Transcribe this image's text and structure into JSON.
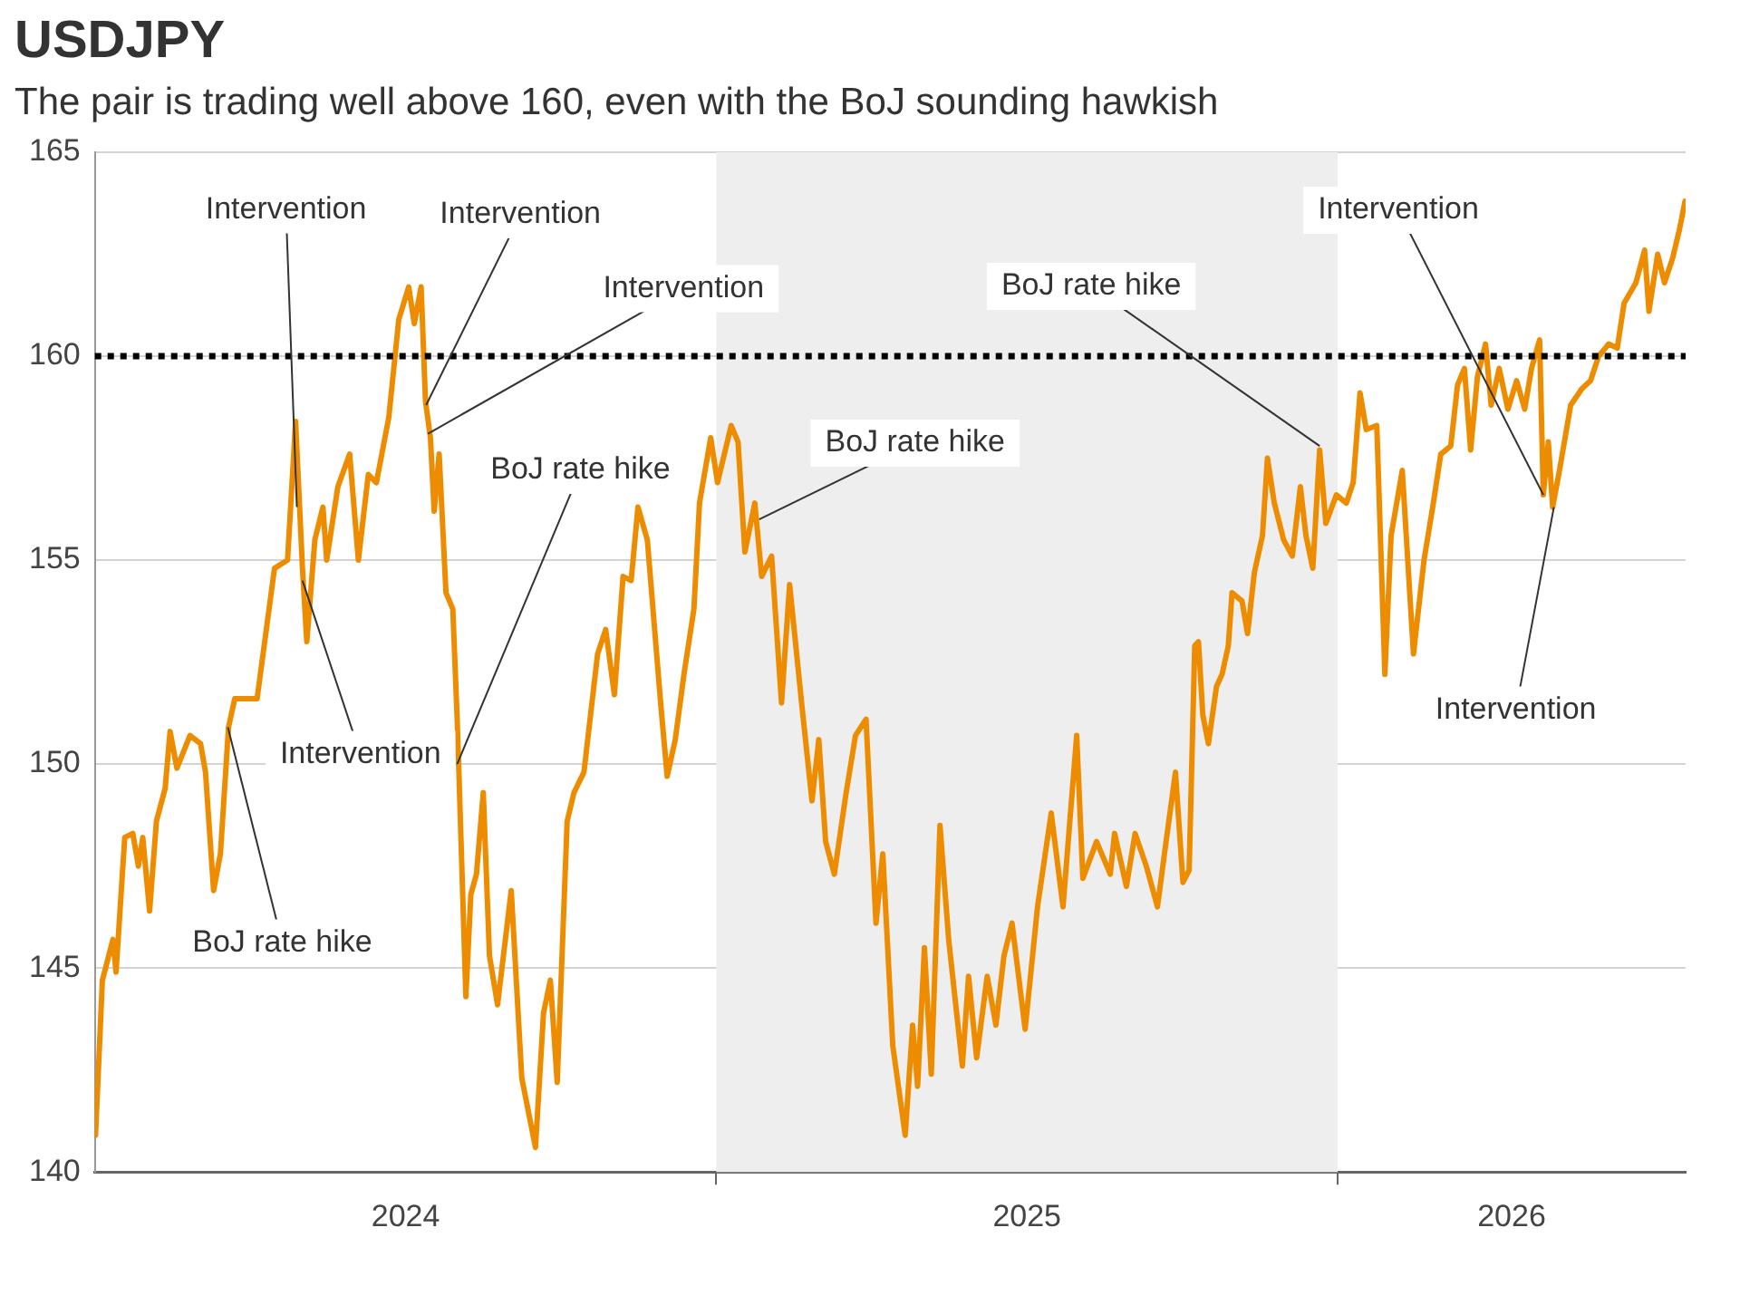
{
  "chart_data": {
    "type": "line",
    "title": "USDJPY",
    "subtitle": "The pair is trading well above 160, even with the BoJ sounding hawkish",
    "series": [
      {
        "color": "#ee8c00",
        "x": [
          2024.001,
          2024.012,
          2024.029,
          2024.034,
          2024.048,
          2024.061,
          2024.07,
          2024.077,
          2024.088,
          2024.099,
          2024.113,
          2024.121,
          2024.132,
          2024.153,
          2024.17,
          2024.178,
          2024.191,
          2024.202,
          2024.215,
          2024.225,
          2024.261,
          2024.275,
          2024.289,
          2024.31,
          2024.323,
          2024.334,
          2024.341,
          2024.354,
          2024.367,
          2024.373,
          2024.391,
          2024.41,
          2024.424,
          2024.44,
          2024.453,
          2024.473,
          2024.489,
          2024.505,
          2024.514,
          2024.525,
          2024.532,
          2024.54,
          2024.546,
          2024.554,
          2024.565,
          2024.576,
          2024.583,
          2024.586,
          2024.597,
          2024.605,
          2024.614,
          2024.625,
          2024.635,
          2024.648,
          2024.67,
          2024.687,
          2024.709,
          2024.722,
          2024.733,
          2024.744,
          2024.76,
          2024.771,
          2024.787,
          2024.809,
          2024.822,
          2024.836,
          2024.85,
          2024.863,
          2024.874,
          2024.889,
          2024.911,
          2024.921,
          2024.934,
          2024.948,
          2024.964,
          2024.973,
          2024.991,
          2025.002,
          2025.024,
          2025.035,
          2025.046,
          2025.062,
          2025.073,
          2025.089,
          2025.105,
          2025.118,
          2025.138,
          2025.154,
          2025.165,
          2025.176,
          2025.19,
          2025.208,
          2025.224,
          2025.241,
          2025.257,
          2025.268,
          2025.284,
          2025.304,
          2025.316,
          2025.324,
          2025.335,
          2025.346,
          2025.36,
          2025.374,
          2025.396,
          2025.406,
          2025.419,
          2025.436,
          2025.45,
          2025.463,
          2025.476,
          2025.497,
          2025.517,
          2025.539,
          2025.558,
          2025.58,
          2025.59,
          2025.612,
          2025.634,
          2025.641,
          2025.66,
          2025.674,
          2025.692,
          2025.71,
          2025.723,
          2025.739,
          2025.751,
          2025.761,
          2025.77,
          2025.776,
          2025.783,
          2025.792,
          2025.805,
          2025.814,
          2025.824,
          2025.83,
          2025.846,
          2025.855,
          2025.866,
          2025.879,
          2025.887,
          2025.898,
          2025.913,
          2025.927,
          2025.94,
          2025.949,
          2025.96,
          2025.971,
          2025.981,
          2025.998,
          2026.014,
          2026.025,
          2026.036,
          2026.046,
          2026.063,
          2026.076,
          2026.086,
          2026.104,
          2026.122,
          2026.139,
          2026.153,
          2026.166,
          2026.182,
          2026.193,
          2026.204,
          2026.214,
          2026.225,
          2026.238,
          2026.247,
          2026.26,
          2026.274,
          2026.288,
          2026.301,
          2026.312,
          2026.325,
          2026.331,
          2026.339,
          2026.346,
          2026.357,
          2026.375,
          2026.393,
          2026.407,
          2026.42,
          2026.436,
          2026.45,
          2026.461,
          2026.48,
          2026.494,
          2026.501,
          2026.515,
          2026.526,
          2026.539,
          2026.55,
          2026.559
        ],
        "values": [
          140.9,
          144.7,
          145.7,
          144.9,
          148.2,
          148.3,
          147.5,
          148.2,
          146.4,
          148.6,
          149.4,
          150.8,
          149.9,
          150.7,
          150.5,
          149.8,
          146.9,
          147.8,
          150.9,
          151.6,
          151.6,
          153.2,
          154.8,
          155.0,
          158.4,
          154.8,
          153.0,
          155.5,
          156.3,
          155.0,
          156.8,
          157.6,
          155.0,
          157.1,
          156.9,
          158.5,
          160.9,
          161.7,
          160.8,
          161.7,
          158.9,
          158.0,
          156.2,
          157.6,
          154.2,
          153.8,
          151.1,
          149.7,
          144.3,
          146.8,
          147.3,
          149.3,
          145.3,
          144.1,
          146.9,
          142.3,
          140.6,
          143.9,
          144.7,
          142.2,
          148.6,
          149.3,
          149.8,
          152.7,
          153.3,
          151.7,
          154.6,
          154.5,
          156.3,
          155.5,
          151.4,
          149.7,
          150.6,
          152.2,
          153.8,
          156.4,
          158.0,
          156.9,
          158.3,
          157.9,
          155.2,
          156.4,
          154.6,
          155.1,
          151.5,
          154.4,
          151.4,
          149.1,
          150.6,
          148.1,
          147.3,
          149.2,
          150.7,
          151.1,
          146.1,
          147.8,
          143.1,
          140.9,
          143.6,
          142.1,
          145.5,
          142.4,
          148.5,
          145.7,
          142.6,
          144.8,
          142.8,
          144.8,
          143.6,
          145.3,
          146.1,
          143.5,
          146.5,
          148.8,
          146.5,
          150.7,
          147.2,
          148.1,
          147.3,
          148.3,
          147.0,
          148.3,
          147.5,
          146.5,
          148.0,
          149.8,
          147.1,
          147.4,
          152.9,
          153.0,
          151.2,
          150.5,
          151.9,
          152.2,
          152.9,
          154.2,
          154.0,
          153.2,
          154.7,
          155.6,
          157.5,
          156.4,
          155.5,
          155.1,
          156.8,
          155.6,
          154.8,
          157.7,
          155.9,
          156.6,
          156.4,
          156.9,
          159.1,
          158.2,
          158.3,
          152.2,
          155.6,
          157.2,
          152.7,
          155.0,
          156.3,
          157.6,
          157.8,
          159.3,
          159.7,
          157.7,
          159.5,
          160.3,
          158.8,
          159.7,
          158.7,
          159.4,
          158.7,
          159.7,
          160.4,
          156.6,
          157.9,
          156.3,
          157.2,
          158.8,
          159.2,
          159.4,
          160.0,
          160.3,
          160.2,
          161.3,
          161.8,
          162.6,
          161.1,
          162.5,
          161.8,
          162.4,
          163.1,
          163.8
        ]
      }
    ],
    "xlim": [
      2024,
      2026.56
    ],
    "xticks": [
      {
        "value": 2024.5,
        "label": "2024"
      },
      {
        "value": 2025,
        "label": null
      },
      {
        "value": 2025.5,
        "label": "2025"
      },
      {
        "value": 2026,
        "label": null
      },
      {
        "value": 2026.28,
        "label": "2026"
      }
    ],
    "ylim": [
      140,
      165
    ],
    "yticks": [
      140,
      145,
      150,
      155,
      160,
      165
    ],
    "grid": "y",
    "legend": false,
    "marker": "none",
    "line_style": "solid",
    "bands": [
      {
        "axis": "x",
        "from": 2025,
        "to": 2026,
        "color": "#eeeeee"
      }
    ],
    "ref_lines": [
      {
        "axis": "y",
        "value": 160,
        "color": "#000000",
        "line_style": "dotted"
      }
    ],
    "annotations": [
      {
        "text": "Intervention",
        "x": 2024.325,
        "y": 156.3
      },
      {
        "text": "Intervention",
        "x": 2024.533,
        "y": 158.8
      },
      {
        "text": "Intervention",
        "x": 2024.536,
        "y": 158.1
      },
      {
        "text": "BoJ rate hike",
        "x": 2024.583,
        "y": 150.0
      },
      {
        "text": "Intervention",
        "x": 2024.334,
        "y": 154.5
      },
      {
        "text": "BoJ rate hike",
        "x": 2024.214,
        "y": 150.9
      },
      {
        "text": "BoJ rate hike",
        "x": 2025.069,
        "y": 156.0
      },
      {
        "text": "BoJ rate hike",
        "x": 2025.971,
        "y": 157.8
      },
      {
        "text": "Intervention",
        "x": 2026.331,
        "y": 156.6
      },
      {
        "text": "Intervention",
        "x": 2026.348,
        "y": 156.3
      }
    ]
  }
}
